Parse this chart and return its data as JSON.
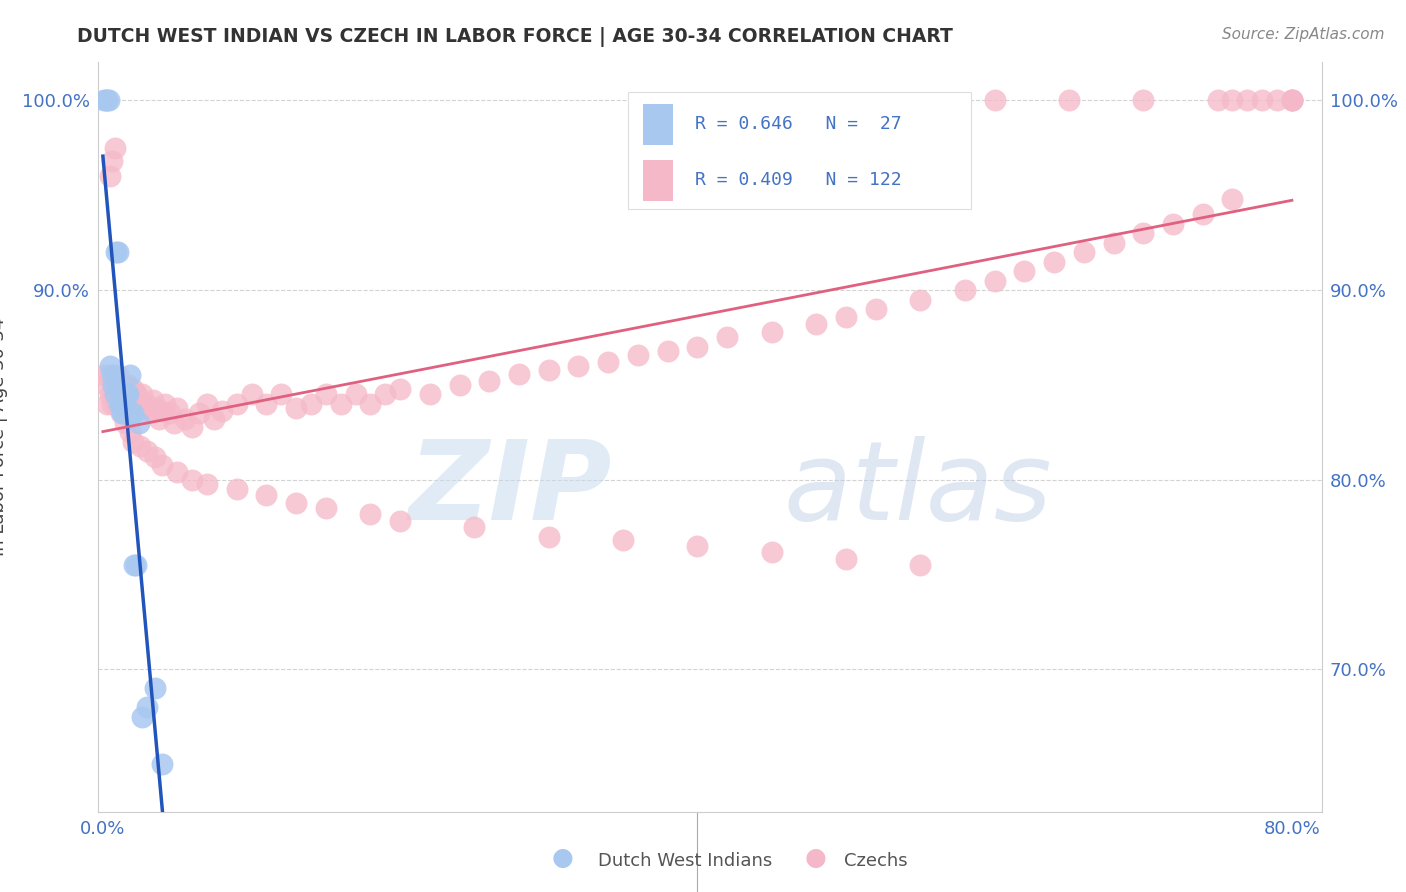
{
  "title": "DUTCH WEST INDIAN VS CZECH IN LABOR FORCE | AGE 30-34 CORRELATION CHART",
  "source": "Source: ZipAtlas.com",
  "ylabel": "In Labor Force | Age 30-34",
  "xlim_min": -0.003,
  "xlim_max": 0.82,
  "ylim_min": 0.625,
  "ylim_max": 1.02,
  "blue_color": "#A8C8F0",
  "pink_color": "#F5B8C8",
  "blue_line_color": "#2255BB",
  "pink_line_color": "#E06080",
  "text_blue": "#4472C4",
  "legend_text_color": "#333333",
  "watermark_color": "#D5E8F5",
  "dutch_x": [
    0.001,
    0.002,
    0.003,
    0.004,
    0.005,
    0.006,
    0.007,
    0.008,
    0.009,
    0.01,
    0.011,
    0.012,
    0.013,
    0.014,
    0.015,
    0.016,
    0.017,
    0.018,
    0.019,
    0.02,
    0.021,
    0.022,
    0.024,
    0.026,
    0.03,
    0.035,
    0.04
  ],
  "dutch_y": [
    1.0,
    1.0,
    1.0,
    1.0,
    0.86,
    0.855,
    0.85,
    0.845,
    0.92,
    0.92,
    0.84,
    0.84,
    0.835,
    0.835,
    0.84,
    0.845,
    0.845,
    0.855,
    0.835,
    0.835,
    0.755,
    0.755,
    0.83,
    0.675,
    0.68,
    0.69,
    0.65
  ],
  "czech_x": [
    0.001,
    0.002,
    0.003,
    0.004,
    0.005,
    0.006,
    0.007,
    0.007,
    0.008,
    0.009,
    0.01,
    0.01,
    0.011,
    0.012,
    0.013,
    0.014,
    0.015,
    0.016,
    0.017,
    0.018,
    0.019,
    0.02,
    0.021,
    0.022,
    0.023,
    0.025,
    0.026,
    0.028,
    0.03,
    0.032,
    0.034,
    0.036,
    0.038,
    0.04,
    0.042,
    0.045,
    0.048,
    0.05,
    0.055,
    0.06,
    0.065,
    0.07,
    0.075,
    0.08,
    0.09,
    0.1,
    0.11,
    0.12,
    0.13,
    0.14,
    0.15,
    0.16,
    0.17,
    0.18,
    0.19,
    0.2,
    0.22,
    0.24,
    0.26,
    0.28,
    0.3,
    0.32,
    0.34,
    0.36,
    0.38,
    0.4,
    0.42,
    0.45,
    0.48,
    0.5,
    0.52,
    0.55,
    0.58,
    0.6,
    0.62,
    0.64,
    0.66,
    0.68,
    0.7,
    0.72,
    0.74,
    0.76,
    0.005,
    0.006,
    0.008,
    0.01,
    0.012,
    0.015,
    0.018,
    0.02,
    0.025,
    0.03,
    0.035,
    0.04,
    0.05,
    0.06,
    0.07,
    0.09,
    0.11,
    0.13,
    0.15,
    0.18,
    0.2,
    0.25,
    0.3,
    0.35,
    0.4,
    0.45,
    0.5,
    0.55,
    0.6,
    0.65,
    0.7,
    0.75,
    0.76,
    0.77,
    0.78,
    0.79,
    0.8,
    0.8,
    0.8,
    0.8
  ],
  "czech_y": [
    0.855,
    0.85,
    0.84,
    0.855,
    0.845,
    0.84,
    0.85,
    0.855,
    0.845,
    0.84,
    0.85,
    0.855,
    0.845,
    0.848,
    0.842,
    0.85,
    0.845,
    0.84,
    0.85,
    0.845,
    0.84,
    0.848,
    0.842,
    0.846,
    0.844,
    0.84,
    0.845,
    0.838,
    0.84,
    0.836,
    0.842,
    0.838,
    0.832,
    0.836,
    0.84,
    0.835,
    0.83,
    0.838,
    0.832,
    0.828,
    0.835,
    0.84,
    0.832,
    0.836,
    0.84,
    0.845,
    0.84,
    0.845,
    0.838,
    0.84,
    0.845,
    0.84,
    0.845,
    0.84,
    0.845,
    0.848,
    0.845,
    0.85,
    0.852,
    0.856,
    0.858,
    0.86,
    0.862,
    0.866,
    0.868,
    0.87,
    0.875,
    0.878,
    0.882,
    0.886,
    0.89,
    0.895,
    0.9,
    0.905,
    0.91,
    0.915,
    0.92,
    0.925,
    0.93,
    0.935,
    0.94,
    0.948,
    0.96,
    0.968,
    0.975,
    0.84,
    0.835,
    0.83,
    0.825,
    0.82,
    0.818,
    0.815,
    0.812,
    0.808,
    0.804,
    0.8,
    0.798,
    0.795,
    0.792,
    0.788,
    0.785,
    0.782,
    0.778,
    0.775,
    0.77,
    0.768,
    0.765,
    0.762,
    0.758,
    0.755,
    1.0,
    1.0,
    1.0,
    1.0,
    1.0,
    1.0,
    1.0,
    1.0,
    1.0,
    1.0,
    1.0,
    1.0
  ]
}
